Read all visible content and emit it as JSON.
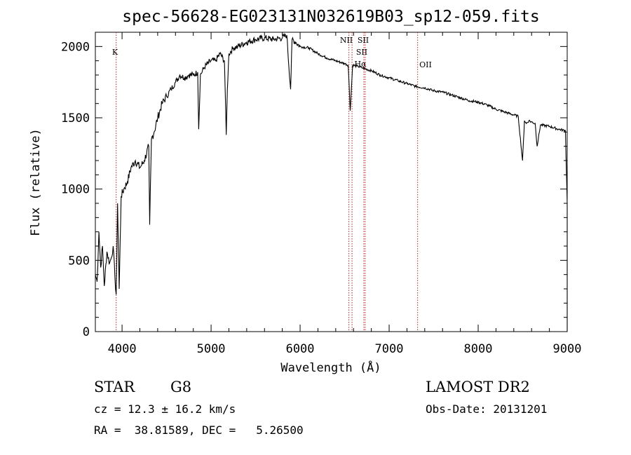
{
  "chart_data": {
    "type": "line",
    "title": "spec-56628-EG023131N032619B03_sp12-059.fits",
    "xlabel": "Wavelength (Å)",
    "ylabel": "Flux (relative)",
    "xlim": [
      3700,
      9000
    ],
    "ylim": [
      0,
      2100
    ],
    "x_ticks": [
      "4000",
      "5000",
      "6000",
      "7000",
      "8000",
      "9000"
    ],
    "y_ticks": [
      "0",
      "500",
      "1000",
      "1500",
      "2000"
    ],
    "grid": false,
    "series": [
      {
        "x": [
          3700,
          3720,
          3740,
          3760,
          3780,
          3800,
          3830,
          3860,
          3880,
          3900,
          3920,
          3934,
          3950,
          3968,
          3990,
          4020,
          4060,
          4100,
          4150,
          4200,
          4250,
          4300,
          4310,
          4330,
          4360,
          4400,
          4450,
          4500,
          4550,
          4600,
          4650,
          4700,
          4750,
          4800,
          4850,
          4861,
          4880,
          4920,
          4960,
          5000,
          5050,
          5100,
          5150,
          5170,
          5183,
          5200,
          5250,
          5300,
          5400,
          5500,
          5600,
          5700,
          5800,
          5850,
          5893,
          5910,
          5950,
          6000,
          6100,
          6200,
          6300,
          6400,
          6500,
          6540,
          6563,
          6590,
          6650,
          6700,
          6800,
          6900,
          7000,
          7100,
          7200,
          7300,
          7400,
          7500,
          7600,
          7700,
          7800,
          7900,
          8000,
          8100,
          8200,
          8300,
          8400,
          8450,
          8498,
          8520,
          8542,
          8570,
          8600,
          8640,
          8662,
          8700,
          8800,
          8900,
          8980,
          9000
        ],
        "y": [
          400,
          350,
          700,
          450,
          600,
          320,
          560,
          480,
          520,
          600,
          380,
          260,
          900,
          300,
          950,
          1000,
          1050,
          1150,
          1200,
          1150,
          1200,
          1300,
          750,
          1350,
          1400,
          1500,
          1600,
          1650,
          1700,
          1750,
          1800,
          1780,
          1800,
          1800,
          1820,
          1420,
          1800,
          1850,
          1880,
          1900,
          1900,
          1950,
          1900,
          1380,
          1700,
          1950,
          1990,
          2000,
          2030,
          2050,
          2060,
          2050,
          2060,
          2080,
          1700,
          2050,
          2030,
          2000,
          1990,
          1950,
          1920,
          1900,
          1880,
          1870,
          1550,
          1870,
          1860,
          1850,
          1830,
          1800,
          1780,
          1760,
          1740,
          1720,
          1710,
          1690,
          1680,
          1660,
          1640,
          1620,
          1610,
          1590,
          1560,
          1540,
          1520,
          1510,
          1200,
          1480,
          1460,
          1480,
          1470,
          1460,
          1300,
          1450,
          1440,
          1420,
          1410,
          900
        ]
      }
    ],
    "spectral_lines": [
      {
        "name": "K",
        "x": 3934
      },
      {
        "name": "NII",
        "x": 6548
      },
      {
        "name": "NII",
        "x": 6583
      },
      {
        "name": "SII",
        "x": 6716
      },
      {
        "name": "SII",
        "x": 6731
      },
      {
        "name": "OII",
        "x": 7320
      }
    ]
  },
  "info": {
    "class_label": "STAR",
    "subclass": "G8",
    "survey": "LAMOST DR2",
    "cz": "cz = 12.3 ± 16.2 km/s",
    "obs_date": "Obs-Date: 20131201",
    "coords": "RA =  38.81589, DEC =   5.26500"
  },
  "line_labels": {
    "k": "K",
    "nii": "NII",
    "sii_top": "SII",
    "sii_mid": "SII",
    "halpha": "Hα",
    "oii": "OII"
  }
}
